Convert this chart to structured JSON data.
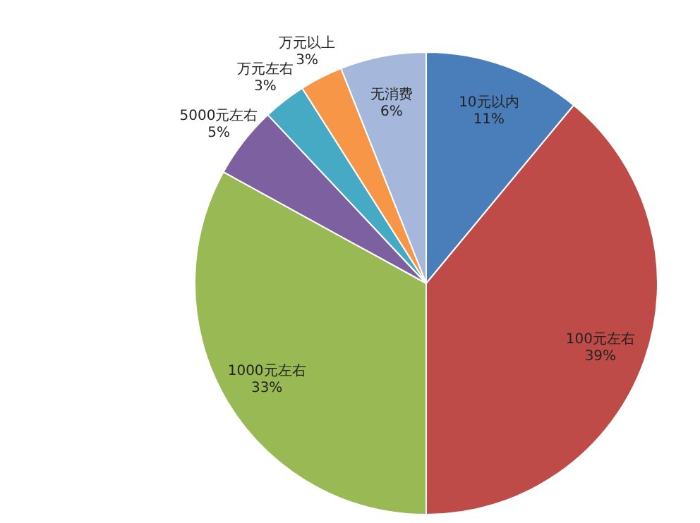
{
  "chart_data": {
    "type": "pie",
    "categories": [
      "10元以内",
      "100元左右",
      "1000元左右",
      "5000元左右",
      "万元左右",
      "万元以上",
      "无消费"
    ],
    "values": [
      11,
      39,
      33,
      5,
      3,
      3,
      6
    ],
    "colors": [
      "#4a7ebb",
      "#be4b48",
      "#98b954",
      "#7d60a0",
      "#46aac5",
      "#f79646",
      "#a5b8dc"
    ],
    "value_labels": [
      "11%",
      "39%",
      "33%",
      "5%",
      "3%",
      "3%",
      "6%"
    ]
  }
}
